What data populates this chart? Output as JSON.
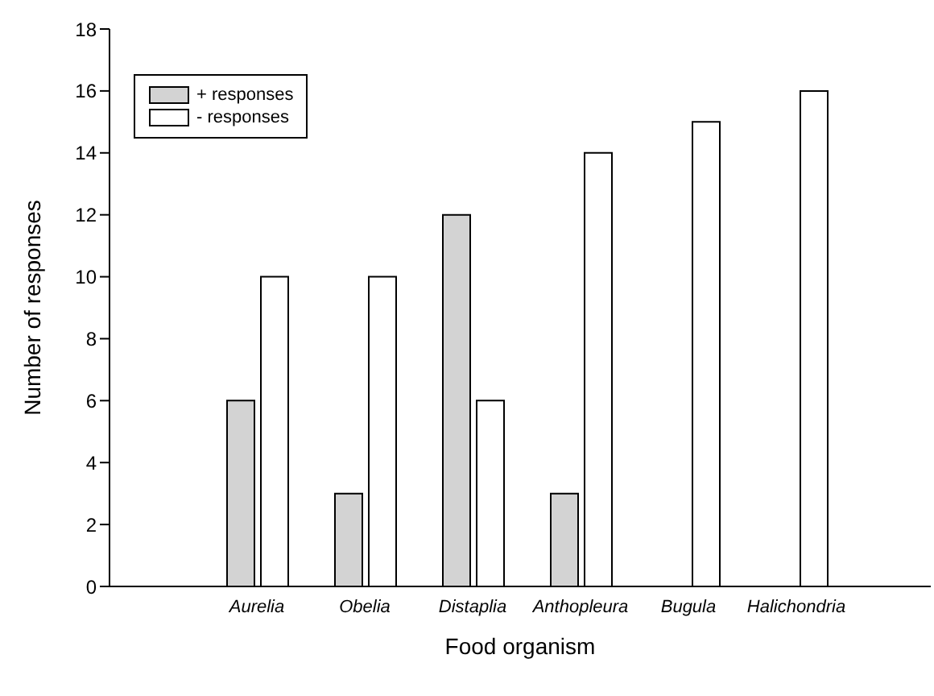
{
  "chart_data": {
    "type": "bar",
    "xlabel": "Food organism",
    "ylabel": "Number of responses",
    "categories": [
      "Aurelia",
      "Obelia",
      "Distaplia",
      "Anthopleura",
      "Bugula",
      "Halichondria"
    ],
    "series": [
      {
        "name": "+ responses",
        "color": "#d3d3d3",
        "values": [
          6,
          3,
          12,
          3,
          0,
          0
        ]
      },
      {
        "name": "-  responses",
        "color": "#ffffff",
        "values": [
          10,
          10,
          6,
          14,
          15,
          16
        ]
      }
    ],
    "ylim": [
      0,
      18
    ],
    "yticks": [
      0,
      2,
      4,
      6,
      8,
      10,
      12,
      14,
      16,
      18
    ],
    "grid": false,
    "legend": "top left"
  }
}
